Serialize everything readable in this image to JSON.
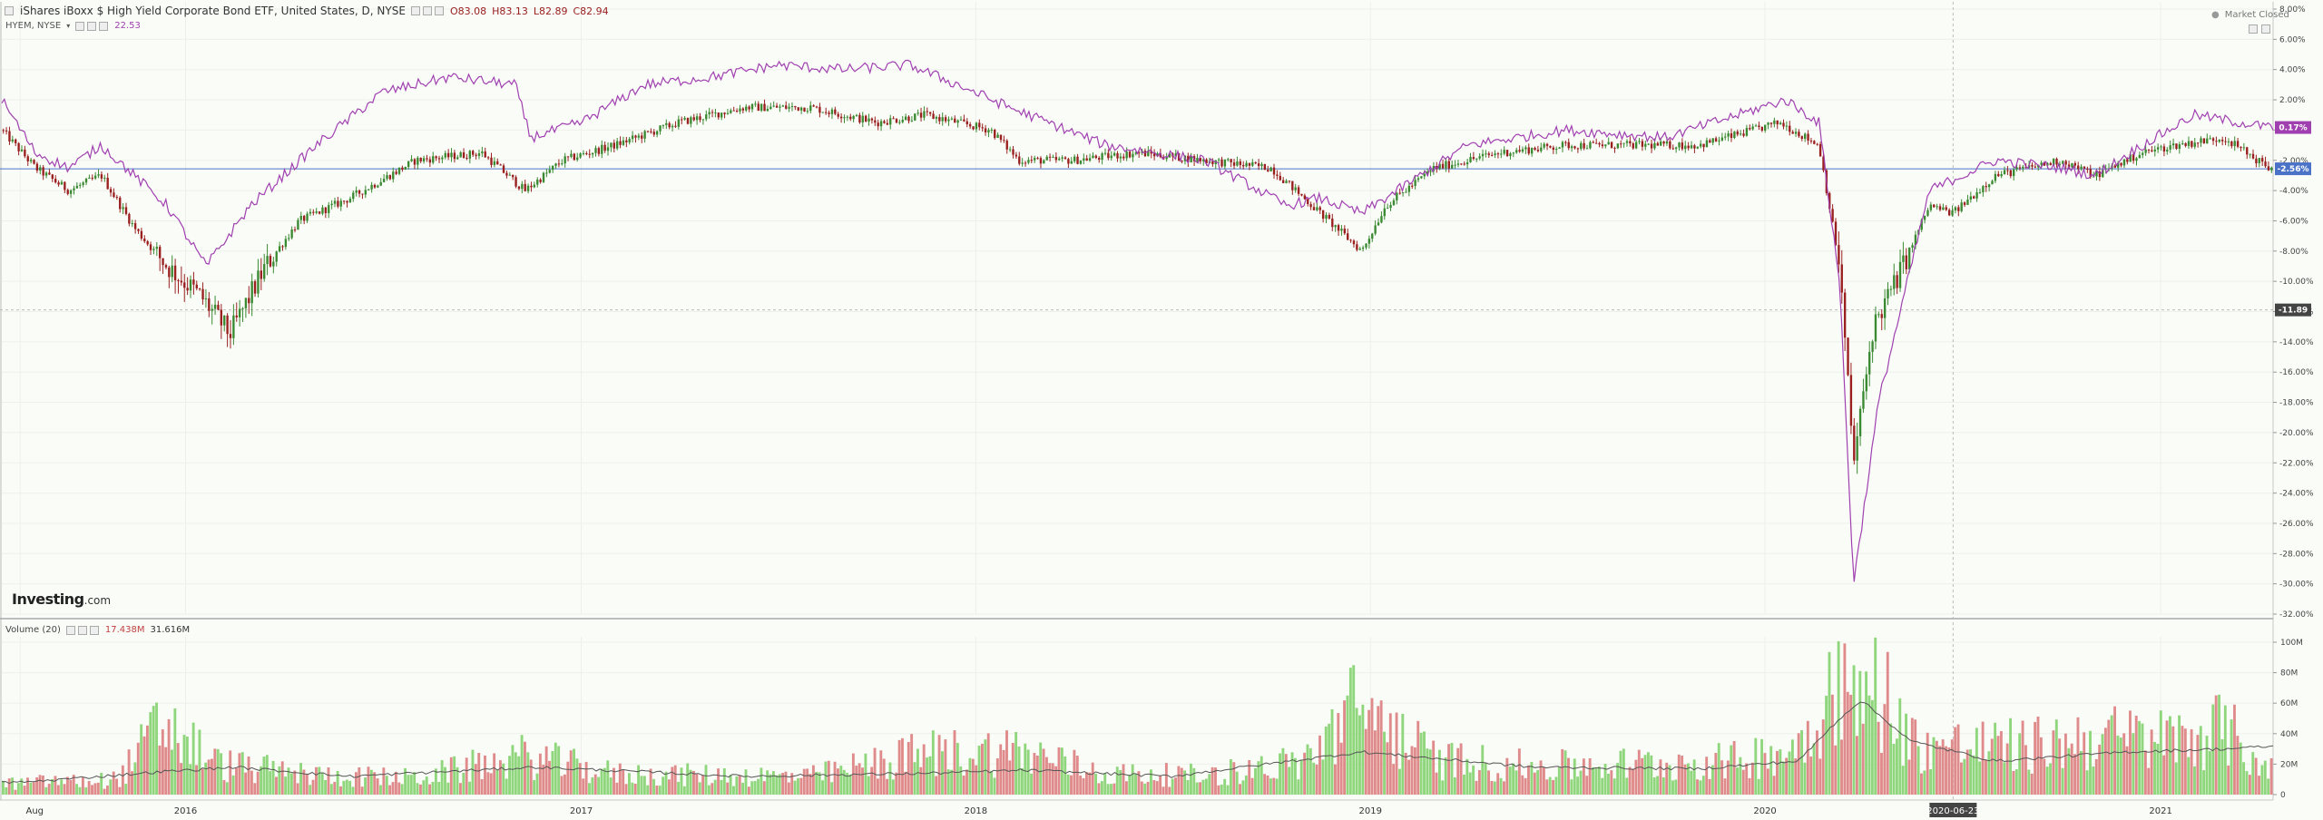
{
  "header": {
    "symbol_title": "iShares iBoxx $ High Yield Corporate Bond ETF, United States, D, NYSE",
    "ohlc": {
      "o": "O83.08",
      "h": "H83.13",
      "l": "L82.89",
      "c": "C82.94"
    },
    "compare_symbol": "HYEM, NYSE",
    "compare_value": "22.53",
    "market_status": "Market Closed"
  },
  "volume_panel": {
    "title": "Volume (20)",
    "value1": "17.438M",
    "value2": "31.616M"
  },
  "brand": {
    "name": "Investing",
    "suffix": ".com"
  },
  "colors": {
    "up": "#3a8a32",
    "down": "#9a2020",
    "compare": "#a040b0",
    "vol_up": "#8fd67c",
    "vol_down": "#e08b8b",
    "vol_ma": "#555555",
    "baseline": "#4a73c8"
  },
  "chart_data": [
    {
      "type": "line",
      "title": "",
      "y_axis": {
        "unit": "%",
        "ticks": [
          "8.00%",
          "6.00%",
          "4.00%",
          "2.00%",
          "0.00%",
          "-2.00%",
          "-4.00%",
          "-6.00%",
          "-8.00%",
          "-10.00%",
          "-12.00%",
          "-14.00%",
          "-16.00%",
          "-18.00%",
          "-20.00%",
          "-22.00%",
          "-24.00%",
          "-26.00%",
          "-28.00%",
          "-30.00%",
          "-32.00%"
        ],
        "range": [
          -32,
          8
        ]
      },
      "x_axis": {
        "labels": [
          "Aug",
          "2016",
          "2017",
          "2018",
          "2019",
          "2020",
          "2021"
        ],
        "label_dates": [
          "2015-08-01",
          "2016-01-01",
          "2017-01-01",
          "2018-01-01",
          "2019-01-01",
          "2020-01-01",
          "2021-01-01"
        ],
        "crosshair_label": "2020-06-23",
        "range": [
          "2015-07-15",
          "2021-04-15"
        ]
      },
      "series": [
        {
          "style": "candlestick",
          "dates": [
            "2015-07-15",
            "2015-08-15",
            "2015-09-15",
            "2015-10-15",
            "2015-11-15",
            "2015-12-15",
            "2016-01-15",
            "2016-02-11",
            "2016-03-15",
            "2016-04-15",
            "2016-06-01",
            "2016-08-01",
            "2016-10-01",
            "2016-11-10",
            "2016-12-15",
            "2017-02-01",
            "2017-04-01",
            "2017-06-01",
            "2017-08-01",
            "2017-10-01",
            "2017-11-15",
            "2018-01-15",
            "2018-02-10",
            "2018-04-01",
            "2018-06-01",
            "2018-08-01",
            "2018-10-01",
            "2018-12-24",
            "2019-01-15",
            "2019-03-01",
            "2019-05-01",
            "2019-07-01",
            "2019-09-01",
            "2019-11-01",
            "2020-01-15",
            "2020-02-20",
            "2020-03-10",
            "2020-03-23",
            "2020-04-10",
            "2020-05-01",
            "2020-06-01",
            "2020-06-23",
            "2020-08-01",
            "2020-10-01",
            "2020-11-01",
            "2020-12-15",
            "2021-01-15",
            "2021-03-01",
            "2021-04-12"
          ],
          "values": [
            0,
            -2.5,
            -4,
            -3,
            -6.5,
            -9,
            -11,
            -13.5,
            -9,
            -6,
            -4.5,
            -2,
            -1.5,
            -4,
            -2,
            -1,
            0.5,
            1.5,
            1.5,
            0.5,
            1,
            0,
            -2,
            -2,
            -1.5,
            -2,
            -2.5,
            -8,
            -5,
            -2.5,
            -1.5,
            -1,
            -1,
            -1,
            0.5,
            -1,
            -9,
            -22,
            -13,
            -10,
            -5,
            -5.5,
            -3,
            -2,
            -3,
            -1.5,
            -1,
            -0.5,
            -2.56
          ]
        },
        {
          "style": "line",
          "dates": [
            "2015-07-15",
            "2015-08-15",
            "2015-09-15",
            "2015-10-15",
            "2015-12-15",
            "2016-01-20",
            "2016-03-01",
            "2016-05-01",
            "2016-07-01",
            "2016-09-01",
            "2016-11-01",
            "2016-11-15",
            "2017-01-01",
            "2017-03-01",
            "2017-05-01",
            "2017-07-01",
            "2017-09-01",
            "2017-11-01",
            "2017-12-15",
            "2018-02-01",
            "2018-05-01",
            "2018-08-01",
            "2018-10-15",
            "2018-11-15",
            "2018-12-24",
            "2019-01-15",
            "2019-04-01",
            "2019-07-01",
            "2019-10-01",
            "2020-01-20",
            "2020-02-20",
            "2020-03-10",
            "2020-03-23",
            "2020-04-15",
            "2020-06-01",
            "2020-08-01",
            "2020-10-01",
            "2020-11-01",
            "2020-12-15",
            "2021-02-01",
            "2021-04-12"
          ],
          "values": [
            2,
            -1.5,
            -2.5,
            -1,
            -5,
            -9,
            -5,
            -1,
            2.5,
            3.5,
            3,
            -0.5,
            0.5,
            3,
            3.5,
            4.3,
            4,
            4.3,
            3,
            1.5,
            -1,
            -2,
            -5,
            -4.5,
            -5.5,
            -4.5,
            -1,
            0,
            -0.5,
            2,
            0.5,
            -10,
            -30,
            -18,
            -4,
            -2,
            -2.5,
            -3,
            -1,
            1,
            0.17
          ]
        }
      ],
      "price_markers": [
        "0.17%",
        "-2.56%",
        "-11.89"
      ]
    },
    {
      "type": "bar",
      "title": "Volume (20)",
      "y_axis": {
        "ticks": [
          "100M",
          "80M",
          "60M",
          "40M",
          "20M",
          "0"
        ],
        "range": [
          0,
          100
        ]
      },
      "series": [
        {
          "name": "volume",
          "style": "bars",
          "unit": "M",
          "dates": [
            "2015-08-01",
            "2015-09-01",
            "2015-10-01",
            "2015-11-01",
            "2015-12-10",
            "2016-02-01",
            "2016-05-01",
            "2016-08-01",
            "2016-11-10",
            "2017-02-01",
            "2017-05-01",
            "2017-08-01",
            "2017-11-15",
            "2018-02-10",
            "2018-05-01",
            "2018-08-01",
            "2018-11-01",
            "2018-12-20",
            "2019-03-01",
            "2019-06-01",
            "2019-09-01",
            "2019-12-01",
            "2020-02-01",
            "2020-03-10",
            "2020-03-24",
            "2020-04-15",
            "2020-05-15",
            "2020-07-01",
            "2020-09-01",
            "2020-11-01",
            "2021-01-10",
            "2021-03-01",
            "2021-04-12"
          ],
          "values": [
            8,
            10,
            9,
            12,
            52,
            22,
            14,
            12,
            28,
            15,
            14,
            13,
            30,
            32,
            15,
            14,
            24,
            65,
            26,
            20,
            22,
            24,
            35,
            90,
            60,
            82,
            38,
            35,
            35,
            42,
            40,
            48,
            17.4
          ]
        },
        {
          "name": "",
          "style": "line",
          "unit": "M",
          "dates": [
            "2015-08-01",
            "2015-12-10",
            "2016-02-15",
            "2016-06-01",
            "2016-11-20",
            "2017-06-01",
            "2017-11-20",
            "2018-02-15",
            "2018-07-01",
            "2018-12-24",
            "2019-06-01",
            "2019-11-01",
            "2020-02-01",
            "2020-03-10",
            "2020-03-30",
            "2020-05-15",
            "2020-08-01",
            "2020-12-01",
            "2021-03-01",
            "2021-04-12"
          ],
          "values": [
            8,
            15,
            18,
            12,
            18,
            12,
            14,
            16,
            12,
            28,
            18,
            17,
            22,
            50,
            62,
            35,
            22,
            28,
            30,
            31.6
          ]
        }
      ]
    }
  ]
}
